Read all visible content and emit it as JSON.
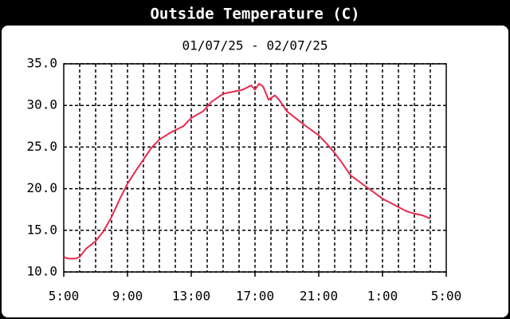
{
  "chart_data": {
    "type": "line",
    "title": "Outside Temperature (C)",
    "subtitle": "01/07/25 - 02/07/25",
    "x": [
      5,
      5.25,
      5.75,
      6,
      6.4,
      7,
      7.5,
      8,
      8.5,
      9,
      9.5,
      10,
      10.5,
      11,
      11.75,
      12.5,
      13,
      13.75,
      14.25,
      15,
      15.75,
      16.25,
      16.75,
      17,
      17.25,
      17.5,
      17.85,
      18.25,
      18.5,
      19,
      20,
      21,
      21.5,
      22,
      22.5,
      23,
      24,
      25,
      26,
      26.5,
      27,
      27.5,
      28
    ],
    "values": [
      11.8,
      11.6,
      11.6,
      11.8,
      12.8,
      13.7,
      14.9,
      16.6,
      18.7,
      20.6,
      22.1,
      23.5,
      24.9,
      25.9,
      26.8,
      27.5,
      28.5,
      29.3,
      30.4,
      31.4,
      31.7,
      31.9,
      32.4,
      31.9,
      32.6,
      32.3,
      30.7,
      31.2,
      30.7,
      29.3,
      27.8,
      26.4,
      25.4,
      24.3,
      23.0,
      21.6,
      20.2,
      18.8,
      17.8,
      17.3,
      17.0,
      16.8,
      16.4
    ],
    "color": "#e8294f",
    "xlim": [
      5,
      29
    ],
    "xticks": [
      {
        "value": 5,
        "label": "5:00"
      },
      {
        "value": 9,
        "label": "9:00"
      },
      {
        "value": 13,
        "label": "13:00"
      },
      {
        "value": 17,
        "label": "17:00"
      },
      {
        "value": 21,
        "label": "21:00"
      },
      {
        "value": 25,
        "label": "1:00"
      },
      {
        "value": 29,
        "label": "5:00"
      }
    ],
    "xgrid": [
      6,
      7,
      8,
      9,
      10,
      11,
      12,
      13,
      14,
      15,
      16,
      17,
      18,
      19,
      20,
      21,
      22,
      23,
      24,
      25,
      26,
      27,
      28
    ],
    "ylim": [
      10,
      35
    ],
    "yticks": [
      {
        "value": 10,
        "label": "10.0"
      },
      {
        "value": 15,
        "label": "15.0"
      },
      {
        "value": 20,
        "label": "20.0"
      },
      {
        "value": 25,
        "label": "25.0"
      },
      {
        "value": 30,
        "label": "30.0"
      },
      {
        "value": 35,
        "label": "35.0"
      }
    ],
    "grid": true
  }
}
